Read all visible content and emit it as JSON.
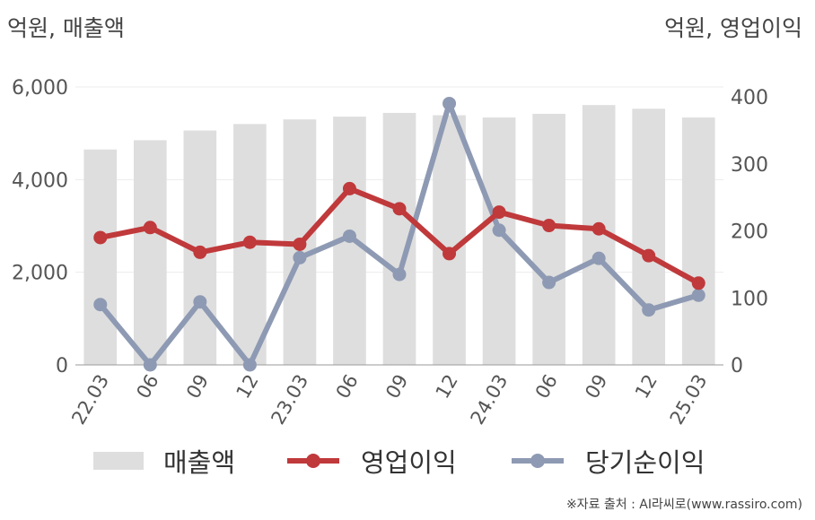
{
  "chart_data": {
    "type": "bar+line",
    "left_axis_unit": "억원, 매출액",
    "right_axis_unit": "억원, 영업이익",
    "categories": [
      "22.03",
      "06",
      "09",
      "12",
      "23.03",
      "06",
      "09",
      "12",
      "24.03",
      "06",
      "09",
      "12",
      "25.03"
    ],
    "y_left": {
      "min": 0,
      "max": 6000,
      "ticks": [
        "0",
        "2,000",
        "4,000",
        "6,000"
      ],
      "tick_values": [
        0,
        2000,
        4000,
        6000
      ]
    },
    "y_right": {
      "min": 0,
      "max": 400,
      "ticks": [
        "0",
        "100",
        "200",
        "300",
        "400"
      ],
      "tick_values": [
        0,
        100,
        200,
        300,
        400
      ]
    },
    "grid": true,
    "legend_position": "bottom",
    "series": [
      {
        "name": "매출액",
        "kind": "bar",
        "axis": "left",
        "color": "#dedede",
        "values": [
          4650,
          4850,
          5060,
          5200,
          5300,
          5360,
          5440,
          5390,
          5340,
          5420,
          5610,
          5530,
          5340
        ]
      },
      {
        "name": "영업이익",
        "kind": "line",
        "axis": "right",
        "color": "#c0393b",
        "values": [
          190,
          205,
          168,
          183,
          180,
          263,
          233,
          166,
          228,
          208,
          203,
          163,
          122
        ]
      },
      {
        "name": "당기순이익",
        "kind": "line",
        "axis": "right",
        "color": "#8e9ab3",
        "values": [
          90,
          0,
          94,
          0,
          160,
          192,
          135,
          390,
          201,
          123,
          159,
          82,
          104
        ]
      }
    ]
  },
  "source": "※자료 출처 : AI라씨로(www.rassiro.com)"
}
